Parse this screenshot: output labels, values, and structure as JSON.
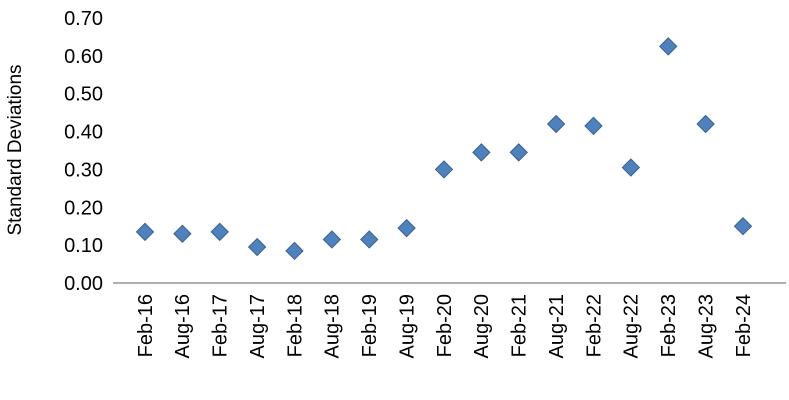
{
  "chart_data": {
    "type": "scatter",
    "title": "",
    "xlabel": "",
    "ylabel": "Standard Deviations",
    "categories": [
      "Feb-16",
      "Aug-16",
      "Feb-17",
      "Aug-17",
      "Feb-18",
      "Aug-18",
      "Feb-19",
      "Aug-19",
      "Feb-20",
      "Aug-20",
      "Feb-21",
      "Aug-21",
      "Feb-22",
      "Aug-22",
      "Feb-23",
      "Aug-23",
      "Feb-24"
    ],
    "values": [
      0.135,
      0.13,
      0.135,
      0.095,
      0.085,
      0.115,
      0.115,
      0.145,
      0.3,
      0.345,
      0.345,
      0.42,
      0.415,
      0.305,
      0.625,
      0.42,
      0.15
    ],
    "ylim": [
      0.0,
      0.7
    ],
    "ytick_step": 0.1,
    "ytick_labels": [
      "0.00",
      "0.10",
      "0.20",
      "0.30",
      "0.40",
      "0.50",
      "0.60",
      "0.70"
    ],
    "grid": false,
    "legend": "none",
    "marker": "diamond",
    "marker_color": "#4f81bd",
    "marker_edge_color": "#3a6191",
    "axis_line_color": "#7f7f7f",
    "text_color": "#000000"
  }
}
